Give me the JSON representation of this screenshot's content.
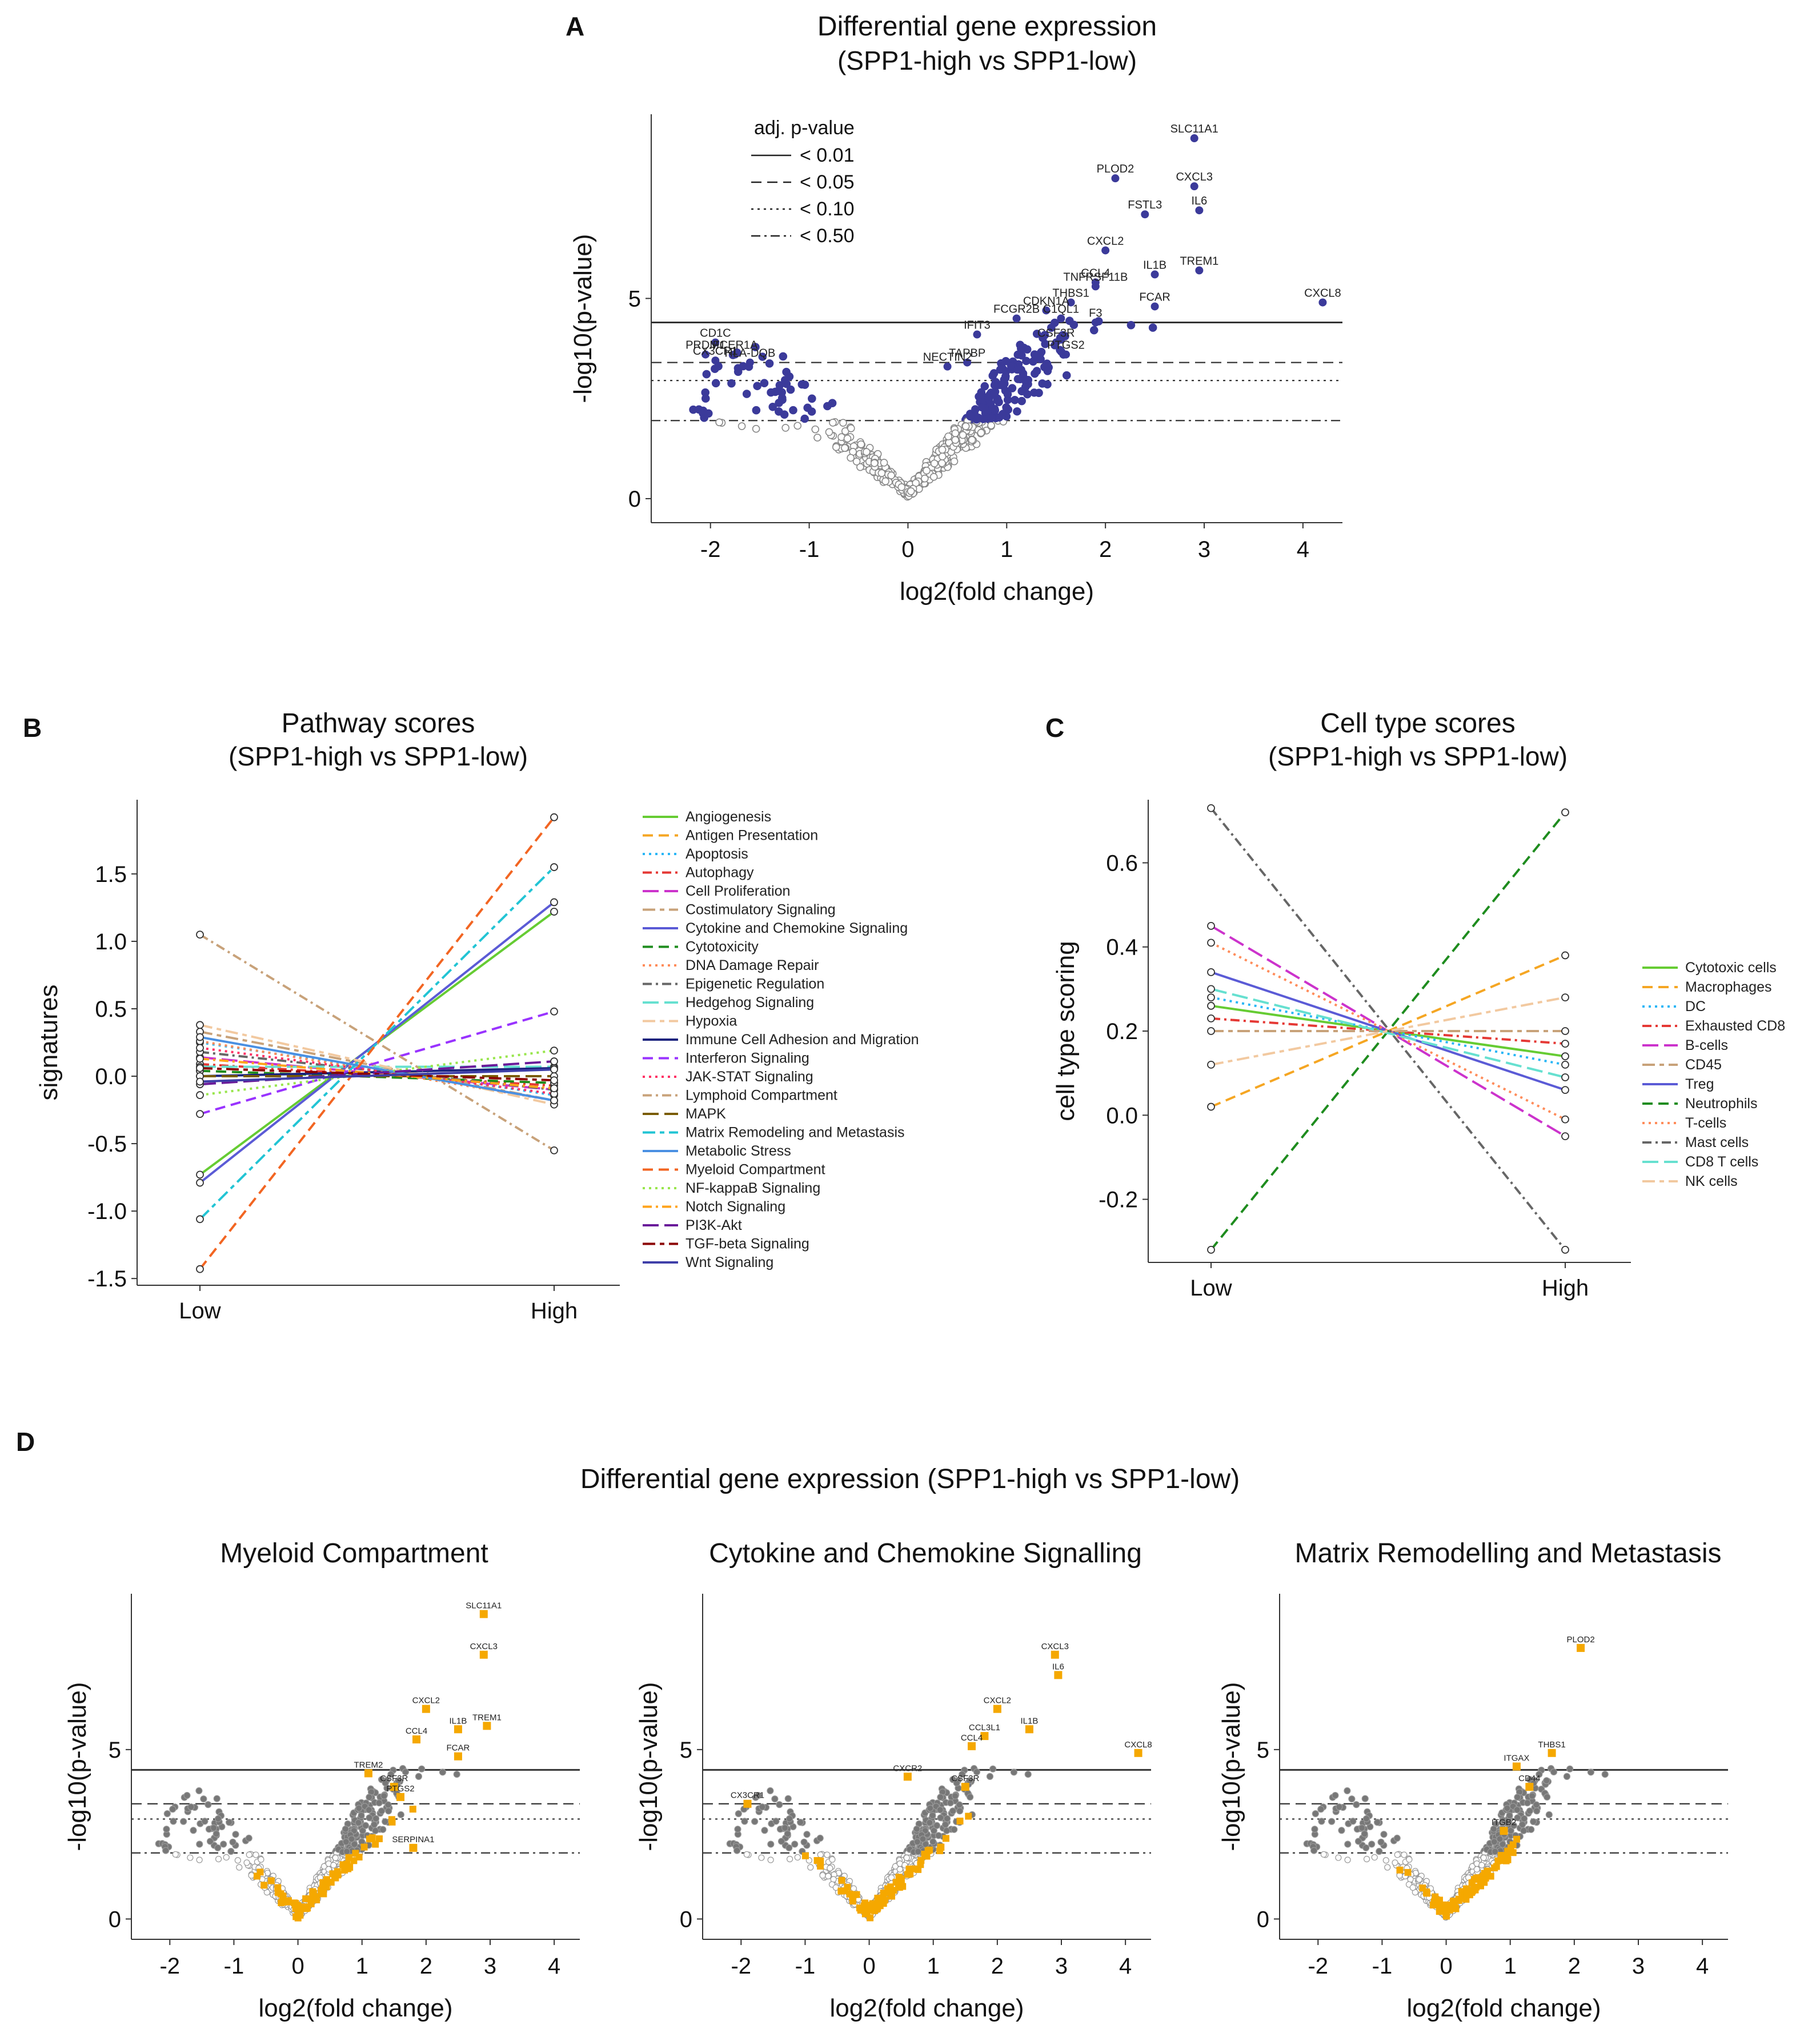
{
  "figure": {
    "panel_letters": [
      "A",
      "B",
      "C",
      "D"
    ],
    "panel_d_title": "Differential gene expression (SPP1-high vs SPP1-low)"
  },
  "chart_data": [
    {
      "id": "A",
      "type": "scatter",
      "title": "Differential gene expression",
      "subtitle": "(SPP1-high vs SPP1-low)",
      "xlabel": "log2(fold change)",
      "ylabel": "-log10(p-value)",
      "xlim": [
        -2.6,
        4.4
      ],
      "ylim": [
        -0.6,
        9.6
      ],
      "xticks": [
        -2,
        -1,
        0,
        1,
        2,
        3,
        4
      ],
      "yticks": [
        0,
        5
      ],
      "legend_title": "adj. p-value",
      "thresholds": [
        {
          "label": "< 0.01",
          "style": "solid",
          "y": 4.4
        },
        {
          "label": "< 0.05",
          "style": "dashed",
          "y": 3.4
        },
        {
          "label": "< 0.10",
          "style": "dotted",
          "y": 2.95
        },
        {
          "label": "< 0.50",
          "style": "dotdash",
          "y": 1.95
        }
      ],
      "labeled_genes": [
        {
          "name": "SLC11A1",
          "x": 2.9,
          "y": 9.0
        },
        {
          "name": "PLOD2",
          "x": 2.1,
          "y": 8.0
        },
        {
          "name": "CXCL3",
          "x": 2.9,
          "y": 7.8
        },
        {
          "name": "FSTL3",
          "x": 2.4,
          "y": 7.1
        },
        {
          "name": "IL6",
          "x": 2.95,
          "y": 7.2
        },
        {
          "name": "CXCL2",
          "x": 2.0,
          "y": 6.2
        },
        {
          "name": "IL1B",
          "x": 2.5,
          "y": 5.6
        },
        {
          "name": "TREM1",
          "x": 2.95,
          "y": 5.7
        },
        {
          "name": "CCL4",
          "x": 1.9,
          "y": 5.4
        },
        {
          "name": "TNFRSF11B",
          "x": 1.9,
          "y": 5.3
        },
        {
          "name": "THBS1",
          "x": 1.65,
          "y": 4.9
        },
        {
          "name": "FCAR",
          "x": 2.5,
          "y": 4.8
        },
        {
          "name": "CXCL8",
          "x": 4.2,
          "y": 4.9
        },
        {
          "name": "CDKN1A",
          "x": 1.4,
          "y": 4.7
        },
        {
          "name": "C1QL1",
          "x": 1.55,
          "y": 4.5
        },
        {
          "name": "F3",
          "x": 1.9,
          "y": 4.4
        },
        {
          "name": "FCGR2B",
          "x": 1.1,
          "y": 4.5
        },
        {
          "name": "IFIT3",
          "x": 0.7,
          "y": 4.1
        },
        {
          "name": "CSF3R",
          "x": 1.5,
          "y": 3.9
        },
        {
          "name": "PTGS2",
          "x": 1.6,
          "y": 3.6
        },
        {
          "name": "TAPBP",
          "x": 0.6,
          "y": 3.4
        },
        {
          "name": "NECTIN2",
          "x": 0.4,
          "y": 3.3
        },
        {
          "name": "CD1C",
          "x": -1.95,
          "y": 3.9
        },
        {
          "name": "PRDM1",
          "x": -2.05,
          "y": 3.6
        },
        {
          "name": "FCER1A",
          "x": -1.75,
          "y": 3.6
        },
        {
          "name": "CX3CR1",
          "x": -1.95,
          "y": 3.45
        },
        {
          "name": "HLA-DQB",
          "x": -1.6,
          "y": 3.4
        }
      ],
      "point_groups": {
        "significant_color": "#3b3a9a",
        "nonsignificant_color": "#888888",
        "significant_count_approx": 160,
        "nonsignificant_count_approx": 480
      }
    },
    {
      "id": "B",
      "type": "line",
      "title": "Pathway scores",
      "subtitle": "(SPP1-high vs SPP1-low)",
      "xlabel": "",
      "ylabel": "signatures",
      "categories": [
        "Low",
        "High"
      ],
      "ylim": [
        -1.55,
        2.05
      ],
      "yticks": [
        "1.5",
        "1.0",
        "0.5",
        "0.0",
        "-0.5",
        "-1.0",
        "-1.5"
      ],
      "series": [
        {
          "name": "Angiogenesis",
          "color": "#66cc33",
          "dash": "solid",
          "values": [
            -0.73,
            1.22
          ]
        },
        {
          "name": "Antigen Presentation",
          "color": "#f5a623",
          "dash": "dashed",
          "values": [
            0.04,
            -0.05
          ]
        },
        {
          "name": "Apoptosis",
          "color": "#29b6f6",
          "dash": "dotted",
          "values": [
            0.25,
            -0.14
          ]
        },
        {
          "name": "Autophagy",
          "color": "#e53935",
          "dash": "dotdash",
          "values": [
            0.09,
            -0.07
          ]
        },
        {
          "name": "Cell Proliferation",
          "color": "#cc33cc",
          "dash": "longdash",
          "values": [
            0.14,
            -0.1
          ]
        },
        {
          "name": "Costimulatory Signaling",
          "color": "#c8a27a",
          "dash": "twodash",
          "values": [
            0.33,
            -0.18
          ]
        },
        {
          "name": "Cytokine and Chemokine Signaling",
          "color": "#5b5bd6",
          "dash": "solid",
          "values": [
            -0.79,
            1.29
          ]
        },
        {
          "name": "Cytotoxicity",
          "color": "#1e8c1e",
          "dash": "dashed",
          "values": [
            0.04,
            -0.05
          ]
        },
        {
          "name": "DNA Damage Repair",
          "color": "#ff8c5a",
          "dash": "dotted",
          "values": [
            0.26,
            -0.18
          ]
        },
        {
          "name": "Epigenetic Regulation",
          "color": "#666666",
          "dash": "dotdash",
          "values": [
            0.18,
            -0.1
          ]
        },
        {
          "name": "Hedgehog Signaling",
          "color": "#66e0d0",
          "dash": "longdash",
          "values": [
            0.07,
            0.07
          ]
        },
        {
          "name": "Hypoxia",
          "color": "#f2c9a0",
          "dash": "twodash",
          "values": [
            0.38,
            -0.21
          ]
        },
        {
          "name": "Immune Cell Adhesion and Migration",
          "color": "#1a237e",
          "dash": "solid",
          "values": [
            0.0,
            0.06
          ]
        },
        {
          "name": "Interferon Signaling",
          "color": "#9933ff",
          "dash": "dashed",
          "values": [
            -0.28,
            0.48
          ]
        },
        {
          "name": "JAK-STAT Signaling",
          "color": "#ff3366",
          "dash": "dotted",
          "values": [
            0.21,
            -0.13
          ]
        },
        {
          "name": "Lymphoid Compartment",
          "color": "#c8a27a",
          "dash": "dotdash",
          "values": [
            1.05,
            -0.55
          ]
        },
        {
          "name": "MAPK",
          "color": "#7a5c00",
          "dash": "longdash",
          "values": [
            0.0,
            0.0
          ]
        },
        {
          "name": "Matrix Remodeling and Metastasis",
          "color": "#22c4d4",
          "dash": "twodash",
          "values": [
            -1.06,
            1.55
          ]
        },
        {
          "name": "Metabolic Stress",
          "color": "#4a90e2",
          "dash": "solid",
          "values": [
            0.29,
            -0.18
          ]
        },
        {
          "name": "Myeloid Compartment",
          "color": "#f26522",
          "dash": "dashed",
          "values": [
            -1.43,
            1.92
          ]
        },
        {
          "name": "NF-kappaB Signaling",
          "color": "#99e64d",
          "dash": "dotted",
          "values": [
            -0.14,
            0.19
          ]
        },
        {
          "name": "Notch Signaling",
          "color": "#ffa31a",
          "dash": "dotdash",
          "values": [
            0.13,
            -0.09
          ]
        },
        {
          "name": "PI3K-Akt",
          "color": "#6a1b9a",
          "dash": "longdash",
          "values": [
            -0.06,
            0.11
          ]
        },
        {
          "name": "TGF-beta Signaling",
          "color": "#8b0000",
          "dash": "twodash",
          "values": [
            0.06,
            -0.03
          ]
        },
        {
          "name": "Wnt Signaling",
          "color": "#3f3fa8",
          "dash": "solid",
          "values": [
            -0.04,
            0.05
          ]
        }
      ]
    },
    {
      "id": "C",
      "type": "line",
      "title": "Cell type scores",
      "subtitle": "(SPP1-high vs SPP1-low)",
      "xlabel": "",
      "ylabel": "cell type scoring",
      "categories": [
        "Low",
        "High"
      ],
      "ylim": [
        -0.35,
        0.75
      ],
      "yticks": [
        "0.6",
        "0.4",
        "0.2",
        "0.0",
        "-0.2"
      ],
      "series": [
        {
          "name": "Cytotoxic cells",
          "color": "#66cc33",
          "dash": "solid",
          "values": [
            0.26,
            0.14
          ]
        },
        {
          "name": "Macrophages",
          "color": "#f5a623",
          "dash": "dashed",
          "values": [
            0.02,
            0.38
          ]
        },
        {
          "name": "DC",
          "color": "#29b6f6",
          "dash": "dotted",
          "values": [
            0.28,
            0.12
          ]
        },
        {
          "name": "Exhausted CD8",
          "color": "#e53935",
          "dash": "dotdash",
          "values": [
            0.23,
            0.17
          ]
        },
        {
          "name": "B-cells",
          "color": "#cc33cc",
          "dash": "longdash",
          "values": [
            0.45,
            -0.05
          ]
        },
        {
          "name": "CD45",
          "color": "#c8a27a",
          "dash": "twodash",
          "values": [
            0.2,
            0.2
          ]
        },
        {
          "name": "Treg",
          "color": "#5b5bd6",
          "dash": "solid",
          "values": [
            0.34,
            0.06
          ]
        },
        {
          "name": "Neutrophils",
          "color": "#1e8c1e",
          "dash": "dashed",
          "values": [
            -0.32,
            0.72
          ]
        },
        {
          "name": "T-cells",
          "color": "#ff8c5a",
          "dash": "dotted",
          "values": [
            0.41,
            -0.01
          ]
        },
        {
          "name": "Mast cells",
          "color": "#666666",
          "dash": "dotdash",
          "values": [
            0.73,
            -0.32
          ]
        },
        {
          "name": "CD8 T cells",
          "color": "#66e0d0",
          "dash": "longdash",
          "values": [
            0.3,
            0.09
          ]
        },
        {
          "name": "NK cells",
          "color": "#f2c9a0",
          "dash": "twodash",
          "values": [
            0.12,
            0.28
          ]
        }
      ]
    },
    {
      "id": "D1",
      "type": "scatter",
      "title": "Myeloid Compartment",
      "xlabel": "log2(fold change)",
      "ylabel": "-log10(p-value)",
      "xlim": [
        -2.6,
        4.4
      ],
      "ylim": [
        -0.6,
        9.6
      ],
      "xticks": [
        -2,
        -1,
        0,
        1,
        2,
        3,
        4
      ],
      "yticks": [
        0,
        5
      ],
      "highlight_color": "#f5a800",
      "labeled_genes": [
        {
          "name": "SLC11A1",
          "x": 2.9,
          "y": 9.0
        },
        {
          "name": "CXCL3",
          "x": 2.9,
          "y": 7.8
        },
        {
          "name": "CXCL2",
          "x": 2.0,
          "y": 6.2
        },
        {
          "name": "IL1B",
          "x": 2.5,
          "y": 5.6
        },
        {
          "name": "TREM1",
          "x": 2.95,
          "y": 5.7
        },
        {
          "name": "CCL4",
          "x": 1.85,
          "y": 5.3
        },
        {
          "name": "FCAR",
          "x": 2.5,
          "y": 4.8
        },
        {
          "name": "TREM2",
          "x": 1.1,
          "y": 4.3
        },
        {
          "name": "CSF3R",
          "x": 1.5,
          "y": 3.9
        },
        {
          "name": "PTGS2",
          "x": 1.6,
          "y": 3.6
        },
        {
          "name": "SERPINA1",
          "x": 1.8,
          "y": 2.1
        }
      ]
    },
    {
      "id": "D2",
      "type": "scatter",
      "title": "Cytokine and Chemokine Signalling",
      "xlabel": "log2(fold change)",
      "ylabel": "-log10(p-value)",
      "xlim": [
        -2.6,
        4.4
      ],
      "ylim": [
        -0.6,
        9.6
      ],
      "xticks": [
        -2,
        -1,
        0,
        1,
        2,
        3,
        4
      ],
      "yticks": [
        0,
        5
      ],
      "highlight_color": "#f5a800",
      "labeled_genes": [
        {
          "name": "CXCL3",
          "x": 2.9,
          "y": 7.8
        },
        {
          "name": "IL6",
          "x": 2.95,
          "y": 7.2
        },
        {
          "name": "CXCL2",
          "x": 2.0,
          "y": 6.2
        },
        {
          "name": "CCL3L1",
          "x": 1.8,
          "y": 5.4
        },
        {
          "name": "IL1B",
          "x": 2.5,
          "y": 5.6
        },
        {
          "name": "CCL4",
          "x": 1.6,
          "y": 5.1
        },
        {
          "name": "CXCL8",
          "x": 4.2,
          "y": 4.9
        },
        {
          "name": "CSF3R",
          "x": 1.5,
          "y": 3.9
        },
        {
          "name": "CXCR2",
          "x": 0.6,
          "y": 4.2
        },
        {
          "name": "CX3CR1",
          "x": -1.9,
          "y": 3.4
        }
      ]
    },
    {
      "id": "D3",
      "type": "scatter",
      "title": "Matrix Remodelling and Metastasis",
      "xlabel": "log2(fold change)",
      "ylabel": "-log10(p-value)",
      "xlim": [
        -2.6,
        4.4
      ],
      "ylim": [
        -0.6,
        9.6
      ],
      "xticks": [
        -2,
        -1,
        0,
        1,
        2,
        3,
        4
      ],
      "yticks": [
        0,
        5
      ],
      "highlight_color": "#f5a800",
      "labeled_genes": [
        {
          "name": "PLOD2",
          "x": 2.1,
          "y": 8.0
        },
        {
          "name": "THBS1",
          "x": 1.65,
          "y": 4.9
        },
        {
          "name": "ITGAX",
          "x": 1.1,
          "y": 4.5
        },
        {
          "name": "CD44",
          "x": 1.3,
          "y": 3.9
        },
        {
          "name": "ITGB2",
          "x": 0.9,
          "y": 2.6
        }
      ]
    }
  ]
}
